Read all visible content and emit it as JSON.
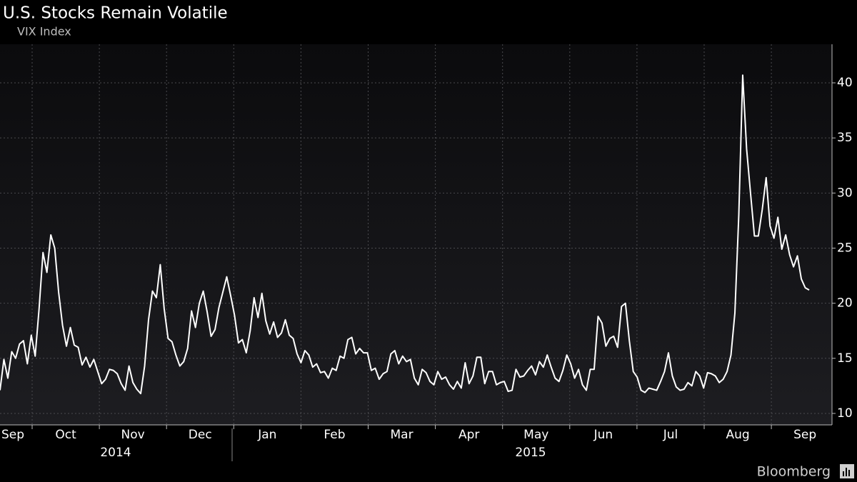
{
  "chart_data": {
    "type": "line",
    "title": "U.S. Stocks Remain Volatile",
    "subtitle": "VIX Index",
    "source": "Bloomberg",
    "series": [
      {
        "name": "VIX Index",
        "color": "#ffffff",
        "values": [
          12.1,
          14.9,
          13.2,
          15.6,
          15,
          16.3,
          16.6,
          14.5,
          17.1,
          15.2,
          19.5,
          24.6,
          22.8,
          26.2,
          25,
          21,
          18,
          16.1,
          17.8,
          16.2,
          16,
          14.4,
          15.1,
          14.2,
          14.9,
          13.8,
          12.7,
          13.1,
          14,
          13.9,
          13.6,
          12.7,
          12.1,
          14.3,
          12.8,
          12.2,
          11.8,
          14.3,
          18.5,
          21.1,
          20.5,
          23.5,
          19.5,
          16.8,
          16.5,
          15.3,
          14.3,
          14.7,
          15.9,
          19.3,
          17.8,
          20,
          21.1,
          19.2,
          17,
          17.6,
          19.6,
          21,
          22.4,
          20.7,
          18.9,
          16.4,
          16.7,
          15.5,
          17.5,
          20.5,
          18.7,
          20.9,
          18.4,
          17.2,
          18.3,
          16.9,
          17.3,
          18.5,
          17.1,
          16.8,
          15.4,
          14.6,
          15.7,
          15.3,
          14.2,
          14.5,
          13.7,
          13.8,
          13.2,
          14.1,
          13.9,
          15.2,
          15,
          16.7,
          16.9,
          15.4,
          15.9,
          15.5,
          15.5,
          13.9,
          14.1,
          13.1,
          13.6,
          13.8,
          15.4,
          15.7,
          14.5,
          15.2,
          14.7,
          14.9,
          13.2,
          12.6,
          14,
          13.7,
          12.9,
          12.6,
          13.8,
          13.1,
          13.3,
          12.6,
          12.2,
          12.9,
          12.3,
          14.6,
          12.7,
          13.4,
          15.1,
          15.1,
          12.7,
          13.8,
          13.8,
          12.6,
          12.8,
          12.9,
          12,
          12.1,
          14,
          13.3,
          13.4,
          13.9,
          14.3,
          13.5,
          14.7,
          14.2,
          15.3,
          14.2,
          13.2,
          12.9,
          13.9,
          15.3,
          14.5,
          13.2,
          14,
          12.6,
          12.1,
          14,
          14,
          18.8,
          18.2,
          16.1,
          16.8,
          17,
          16,
          19.7,
          20,
          16.6,
          13.8,
          13.3,
          12.1,
          11.9,
          12.3,
          12.2,
          12.1,
          12.9,
          13.8,
          15.5,
          13.4,
          12.4,
          12.1,
          12.2,
          12.8,
          12.5,
          13.8,
          13.4,
          12.3,
          13.7,
          13.6,
          13.4,
          12.8,
          13.1,
          13.8,
          15.3,
          19.1,
          28,
          40.7,
          34,
          30,
          26.1,
          26.1,
          28.5,
          31.4,
          27,
          25.9,
          27.8,
          24.9,
          26.2,
          24.4,
          23.3,
          24.3,
          22.2,
          21.4,
          21.2
        ]
      }
    ],
    "ylim": [
      8.96,
      43.5
    ],
    "yticks": [
      10,
      15,
      20,
      25,
      30,
      35,
      40
    ],
    "month_labels": [
      "Sep",
      "Oct",
      "Nov",
      "Dec",
      "Jan",
      "Feb",
      "Mar",
      "Apr",
      "May",
      "Jun",
      "Jul",
      "Aug",
      "Sep"
    ],
    "year_labels": [
      "2014",
      "2015"
    ],
    "grid": true
  }
}
